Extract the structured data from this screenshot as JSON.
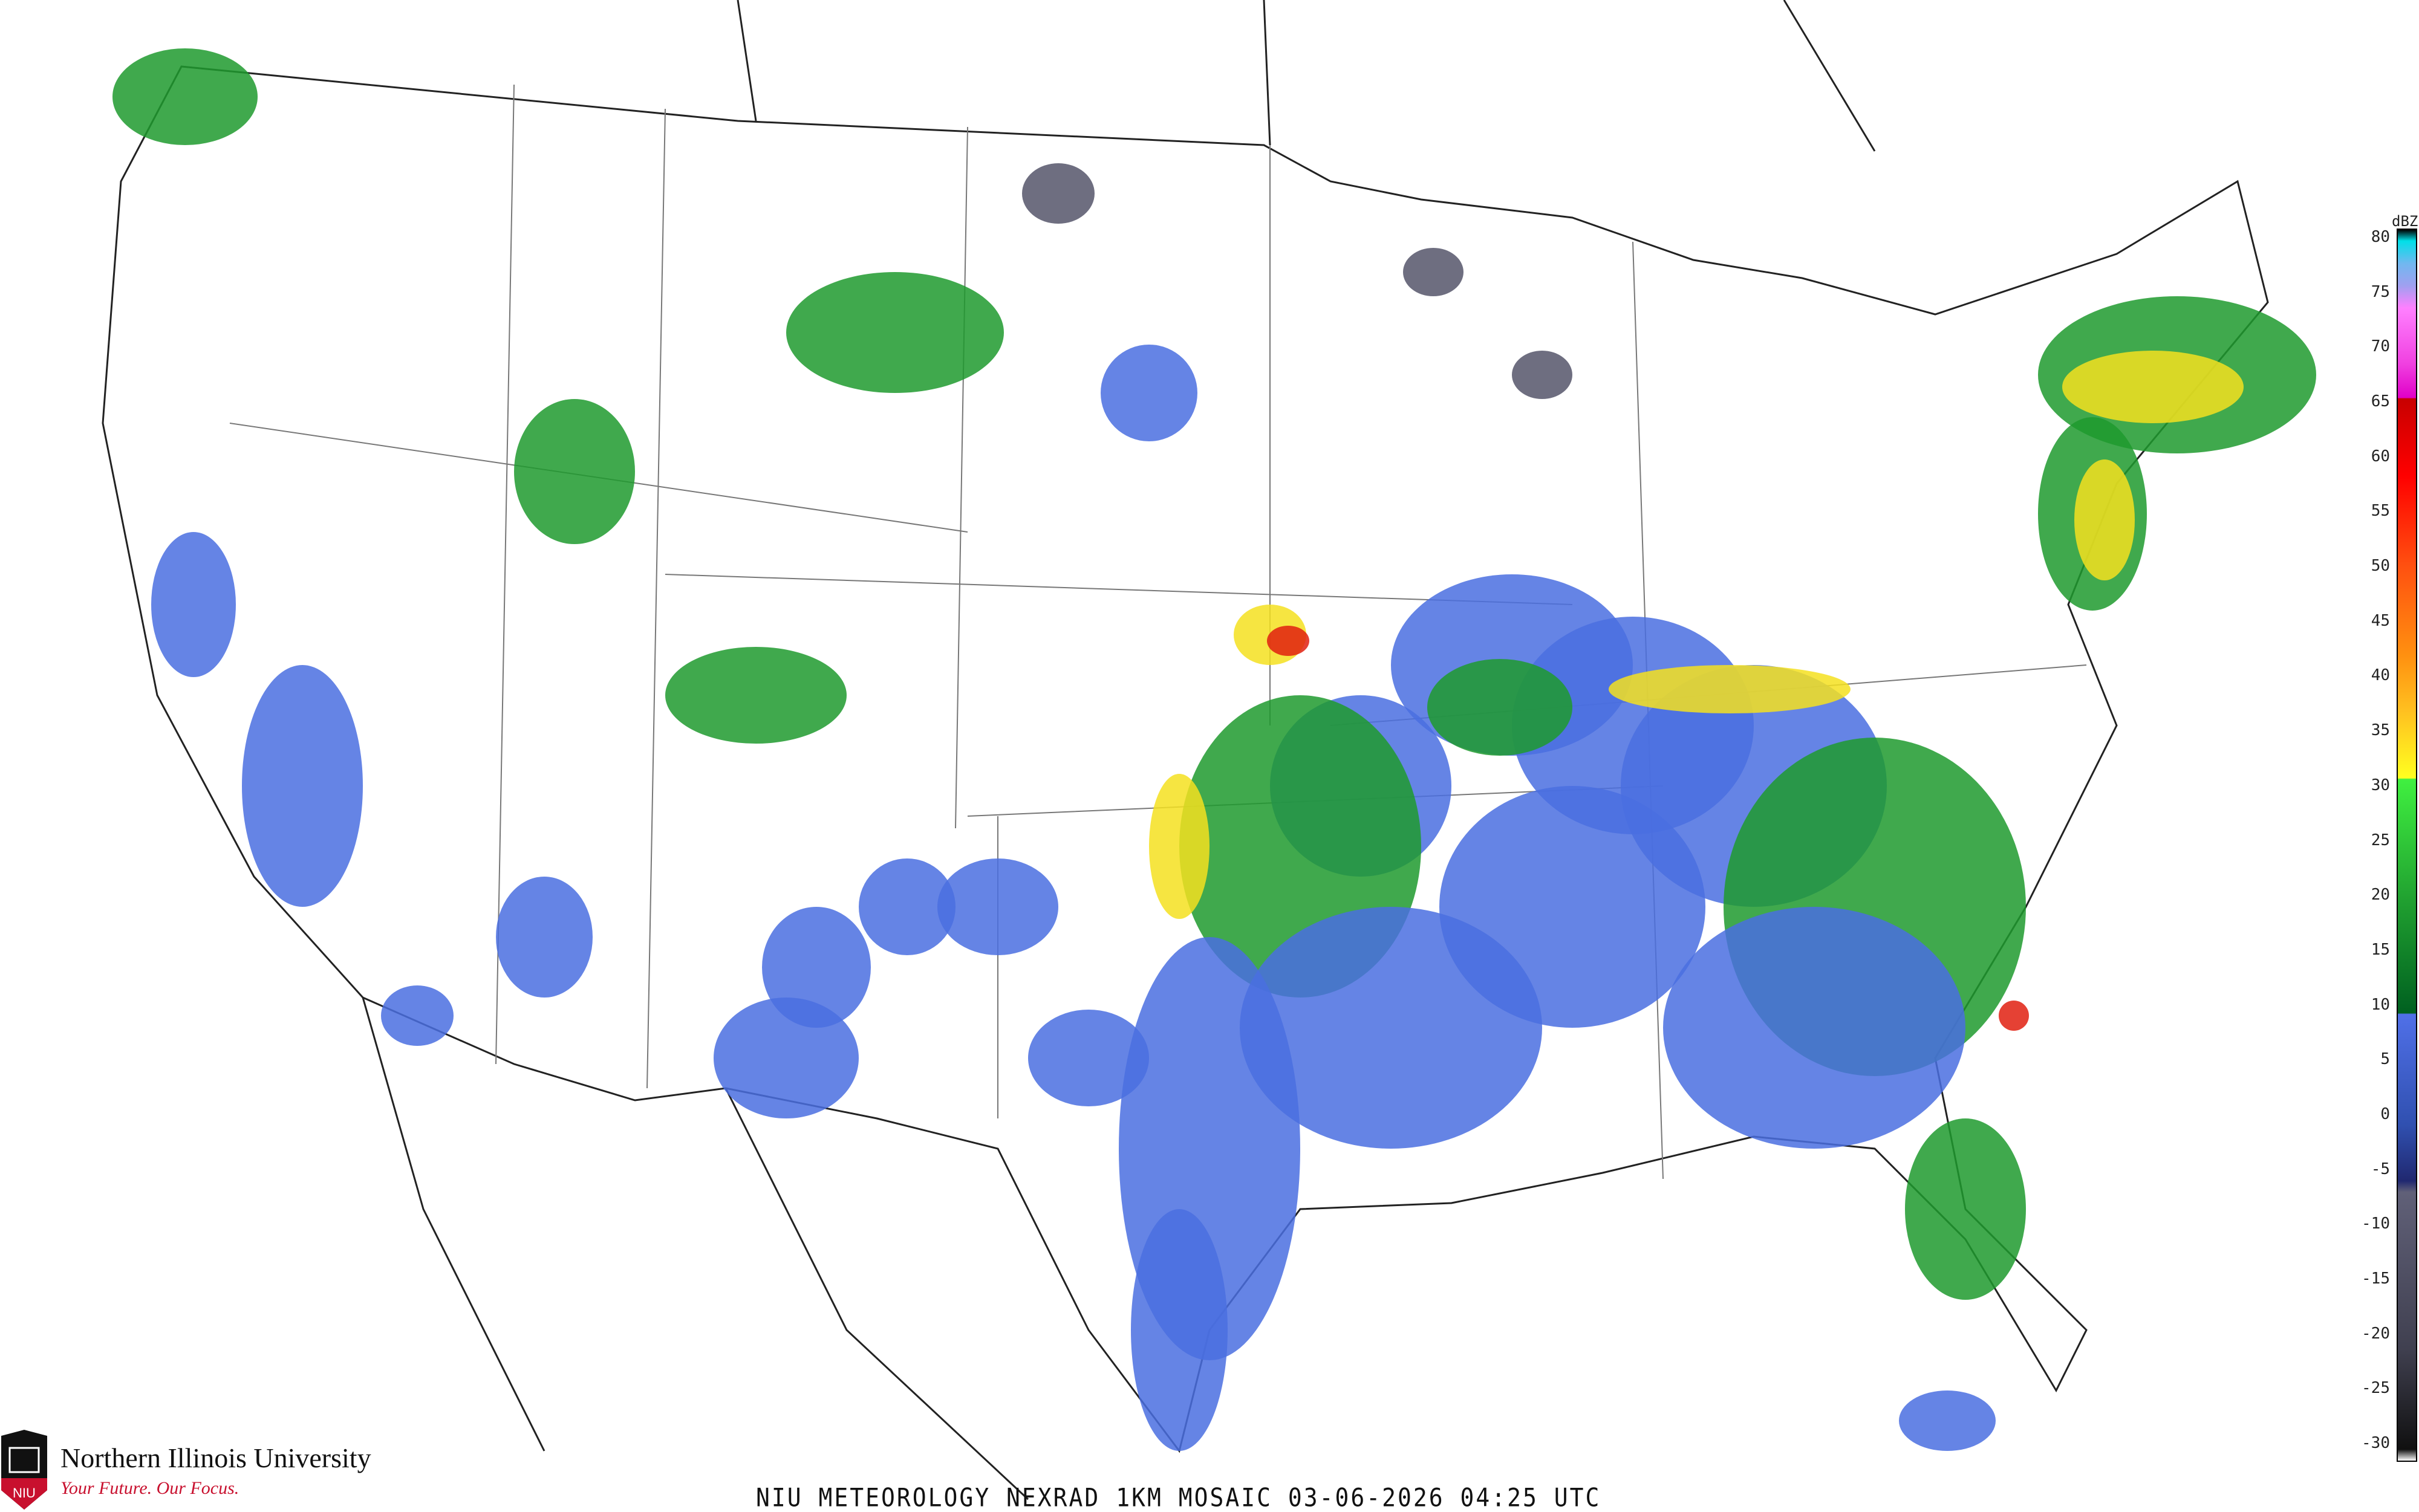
{
  "map": {
    "title": "NIU METEOROLOGY NEXRAD 1KM MOSAIC  03-06-2026 04:25 UTC",
    "product": "NEXRAD 1KM MOSAIC",
    "date": "03-06-2026",
    "time": "04:25 UTC",
    "region": "Contiguous United States"
  },
  "legend": {
    "unit": "dBZ",
    "ticks": [
      "80",
      "75",
      "70",
      "65",
      "60",
      "55",
      "50",
      "45",
      "40",
      "35",
      "30",
      "25",
      "20",
      "15",
      "10",
      "5",
      "0",
      "-5",
      "-10",
      "-15",
      "-20",
      "-25",
      "-30"
    ],
    "color_stops": [
      {
        "dbz": 80,
        "color": "#000000"
      },
      {
        "dbz": 79,
        "color": "#00e0e8"
      },
      {
        "dbz": 77,
        "color": "#70b8f0"
      },
      {
        "dbz": 75,
        "color": "#a0a0f0"
      },
      {
        "dbz": 73,
        "color": "#ff80ff"
      },
      {
        "dbz": 68,
        "color": "#f040e0"
      },
      {
        "dbz": 65,
        "color": "#e000c8"
      },
      {
        "dbz": 64.9,
        "color": "#c80000"
      },
      {
        "dbz": 58,
        "color": "#ff0000"
      },
      {
        "dbz": 50,
        "color": "#ff5010"
      },
      {
        "dbz": 42,
        "color": "#ff9010"
      },
      {
        "dbz": 37,
        "color": "#ffc020"
      },
      {
        "dbz": 31,
        "color": "#ffff20"
      },
      {
        "dbz": 30.9,
        "color": "#40f040"
      },
      {
        "dbz": 20,
        "color": "#20a030"
      },
      {
        "dbz": 10,
        "color": "#006020"
      },
      {
        "dbz": 9.9,
        "color": "#5070e8"
      },
      {
        "dbz": 0,
        "color": "#3050b0"
      },
      {
        "dbz": -5,
        "color": "#202870"
      },
      {
        "dbz": -6,
        "color": "#606078"
      },
      {
        "dbz": -20,
        "color": "#404050"
      },
      {
        "dbz": -29,
        "color": "#101010"
      },
      {
        "dbz": -30,
        "color": "#ffffff"
      }
    ]
  },
  "logo": {
    "name": "Northern Illinois University",
    "tagline": "Your Future. Our Focus.",
    "mark": "NIU"
  },
  "colors": {
    "light": "#4a6ee0",
    "moderate": "#1f9a2e",
    "heavy": "#f5e020",
    "intense": "#e02010",
    "clutter": "#55556a"
  }
}
